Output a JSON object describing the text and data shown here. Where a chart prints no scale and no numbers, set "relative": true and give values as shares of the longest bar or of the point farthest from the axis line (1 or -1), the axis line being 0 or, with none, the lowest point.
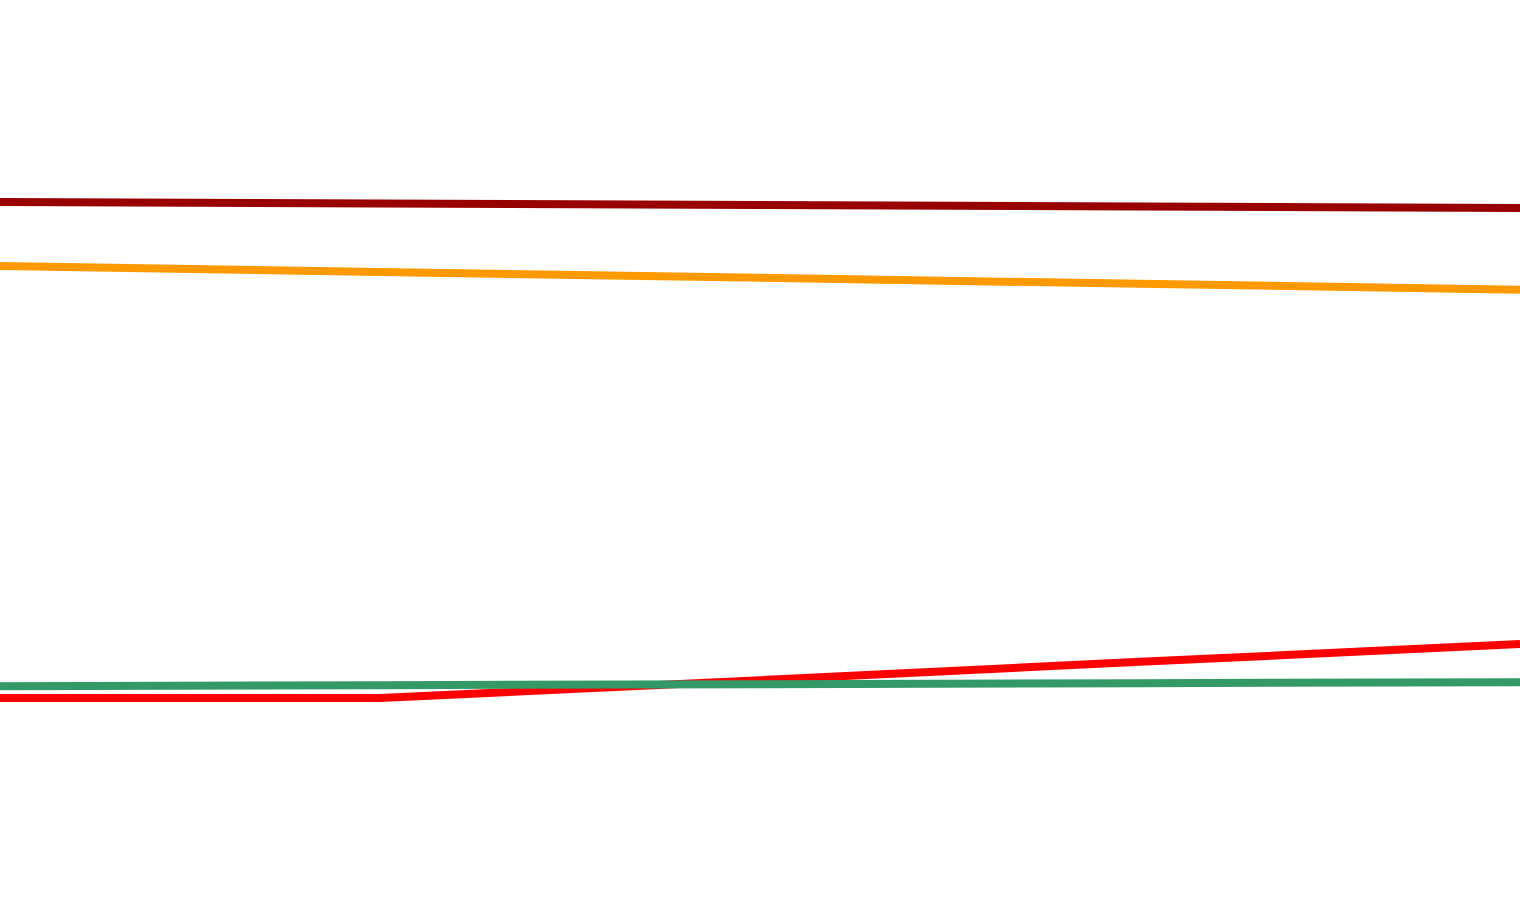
{
  "chart_data": {
    "type": "line",
    "relative": true,
    "categories": [
      null,
      null,
      null,
      null,
      null
    ],
    "series": [
      {
        "color": "#990000",
        "values": [
          1,
          0.997,
          0.994,
          0.991,
          0.988
        ]
      },
      {
        "color": "#ff9900",
        "values": [
          0.871,
          0.859,
          0.847,
          0.835,
          0.823
        ]
      },
      {
        "color": "#ff0000",
        "values": [
          0,
          0,
          0.036,
          0.073,
          0.109
        ]
      },
      {
        "color": "#339966",
        "values": [
          0.024,
          0.026,
          0.028,
          0.03,
          0.032
        ]
      }
    ]
  }
}
